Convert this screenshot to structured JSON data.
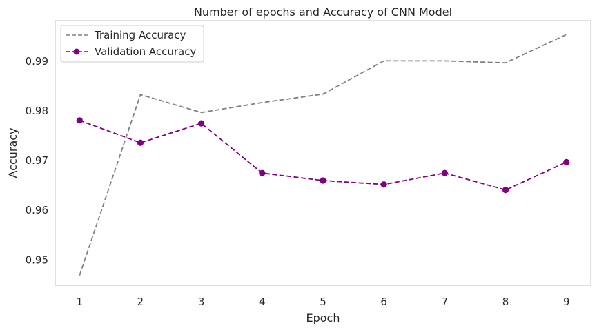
{
  "chart_data": {
    "type": "line",
    "title": "Number of epochs and Accuracy of CNN Model",
    "xlabel": "Epoch",
    "ylabel": "Accuracy",
    "x": [
      1,
      2,
      3,
      4,
      5,
      6,
      7,
      8,
      9
    ],
    "x_ticks": [
      "1",
      "2",
      "3",
      "4",
      "5",
      "6",
      "7",
      "8",
      "9"
    ],
    "y_ticks": [
      "0.95",
      "0.96",
      "0.97",
      "0.98",
      "0.99"
    ],
    "y_tick_values": [
      0.95,
      0.96,
      0.97,
      0.98,
      0.99
    ],
    "xlim": [
      0.6,
      9.4
    ],
    "ylim": [
      0.9449,
      0.9982
    ],
    "grid": false,
    "legend_position": "upper-left",
    "series": [
      {
        "name": "Training Accuracy",
        "values": [
          0.9469,
          0.9833,
          0.9797,
          0.9817,
          0.9834,
          0.9901,
          0.9901,
          0.9897,
          0.9954
        ],
        "color": "#808080",
        "line_style": "dashed",
        "marker": "none"
      },
      {
        "name": "Validation Accuracy",
        "values": [
          0.9781,
          0.9736,
          0.9775,
          0.9675,
          0.966,
          0.9652,
          0.9675,
          0.9641,
          0.9697
        ],
        "color": "#800080",
        "line_style": "dashed",
        "marker": "circle"
      }
    ]
  }
}
